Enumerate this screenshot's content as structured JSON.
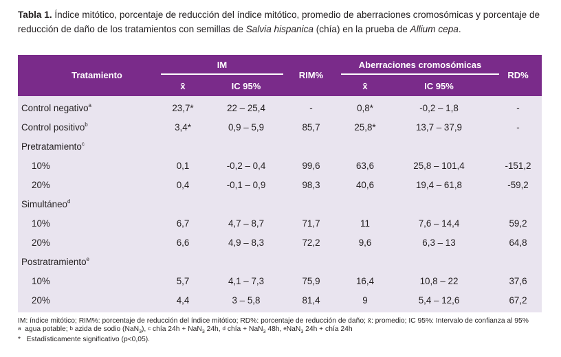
{
  "caption": {
    "bold": "Tabla 1.",
    "text1": " Índice mitótico, porcentaje de reducción del índice mitótico, promedio de aberraciones cromosómicas y porcentaje de reducción de daño de los tratamientos con semillas de ",
    "italic1": "Salvia hispanica",
    "text2": " (chía) en la prueba de ",
    "italic2": "Allium cepa",
    "text3": "."
  },
  "header": {
    "tratamiento": "Tratamiento",
    "im": "IM",
    "rim": "RIM%",
    "ab": "Aberraciones cromosómicas",
    "rd": "RD%",
    "mean_im": "x̄",
    "ic_im": "IC 95%",
    "mean_ab": "x̄",
    "ic_ab": "IC 95%"
  },
  "rows": [
    {
      "name": "Control negativo",
      "sup": "a",
      "sub": false,
      "im": "23,7*",
      "ic_im": "22 – 25,4",
      "rim": "-",
      "ab": "0,8*",
      "ic_ab": "-0,2 – 1,8",
      "rd": "-"
    },
    {
      "name": "Control positivo",
      "sup": "b",
      "sub": false,
      "im": "3,4*",
      "ic_im": "0,9 – 5,9",
      "rim": "85,7",
      "ab": "25,8*",
      "ic_ab": "13,7 – 37,9",
      "rd": "-"
    },
    {
      "name": "Pretratamiento",
      "sup": "c",
      "sub": false,
      "im": "",
      "ic_im": "",
      "rim": "",
      "ab": "",
      "ic_ab": "",
      "rd": ""
    },
    {
      "name": "10%",
      "sup": "",
      "sub": true,
      "im": "0,1",
      "ic_im": "-0,2 – 0,4",
      "rim": "99,6",
      "ab": "63,6",
      "ic_ab": "25,8 – 101,4",
      "rd": "-151,2"
    },
    {
      "name": "20%",
      "sup": "",
      "sub": true,
      "im": "0,4",
      "ic_im": "-0,1 – 0,9",
      "rim": "98,3",
      "ab": "40,6",
      "ic_ab": "19,4 – 61,8",
      "rd": "-59,2"
    },
    {
      "name": "Simultáneo",
      "sup": "d",
      "sub": false,
      "im": "",
      "ic_im": "",
      "rim": "",
      "ab": "",
      "ic_ab": "",
      "rd": ""
    },
    {
      "name": "10%",
      "sup": "",
      "sub": true,
      "im": "6,7",
      "ic_im": "4,7 – 8,7",
      "rim": "71,7",
      "ab": "11",
      "ic_ab": "7,6 – 14,4",
      "rd": "59,2"
    },
    {
      "name": "20%",
      "sup": "",
      "sub": true,
      "im": "6,6",
      "ic_im": "4,9 – 8,3",
      "rim": "72,2",
      "ab": "9,6",
      "ic_ab": "6,3 – 13",
      "rd": "64,8"
    },
    {
      "name": "Postratramiento",
      "sup": "e",
      "sub": false,
      "im": "",
      "ic_im": "",
      "rim": "",
      "ab": "",
      "ic_ab": "",
      "rd": ""
    },
    {
      "name": "10%",
      "sup": "",
      "sub": true,
      "im": "5,7",
      "ic_im": "4,1 – 7,3",
      "rim": "75,9",
      "ab": "16,4",
      "ic_ab": "10,8 – 22",
      "rd": "37,6"
    },
    {
      "name": "20%",
      "sup": "",
      "sub": true,
      "im": "4,4",
      "ic_im": "3 – 5,8",
      "rim": "81,4",
      "ab": "9",
      "ic_ab": "5,4 – 12,6",
      "rd": "67,2"
    }
  ],
  "footer": {
    "line1": "IM: índice mitótico; RIM%: porcentaje de reducción del índice mitótico; RD%: porcentaje de reducción de daño; x̄: promedio; IC 95%: Intervalo de confianza al 95%",
    "f_a_mark": "a",
    "f_a": "  agua potable; ",
    "f_b_mark": "b",
    "f_b": " azida de sodio (NaN",
    "f_b_sub": "3",
    "f_b_end": "), ",
    "f_c_mark": "c",
    "f_c": " chía 24h + NaN",
    "f_c_sub": "3",
    "f_c_end": " 24h, ",
    "f_d_mark": "d",
    "f_d": " chía + NaN",
    "f_d_sub": "3",
    "f_d_end": " 48h, ",
    "f_e_mark": "e",
    "f_e": "NaN",
    "f_e_sub": "3",
    "f_e_end": " 24h + chía 24h",
    "line3": "*   Estadísticamente significativo (p<0,05)."
  },
  "colors": {
    "header_bg": "#7a2b8a",
    "body_bg": "#e9e4ef"
  }
}
